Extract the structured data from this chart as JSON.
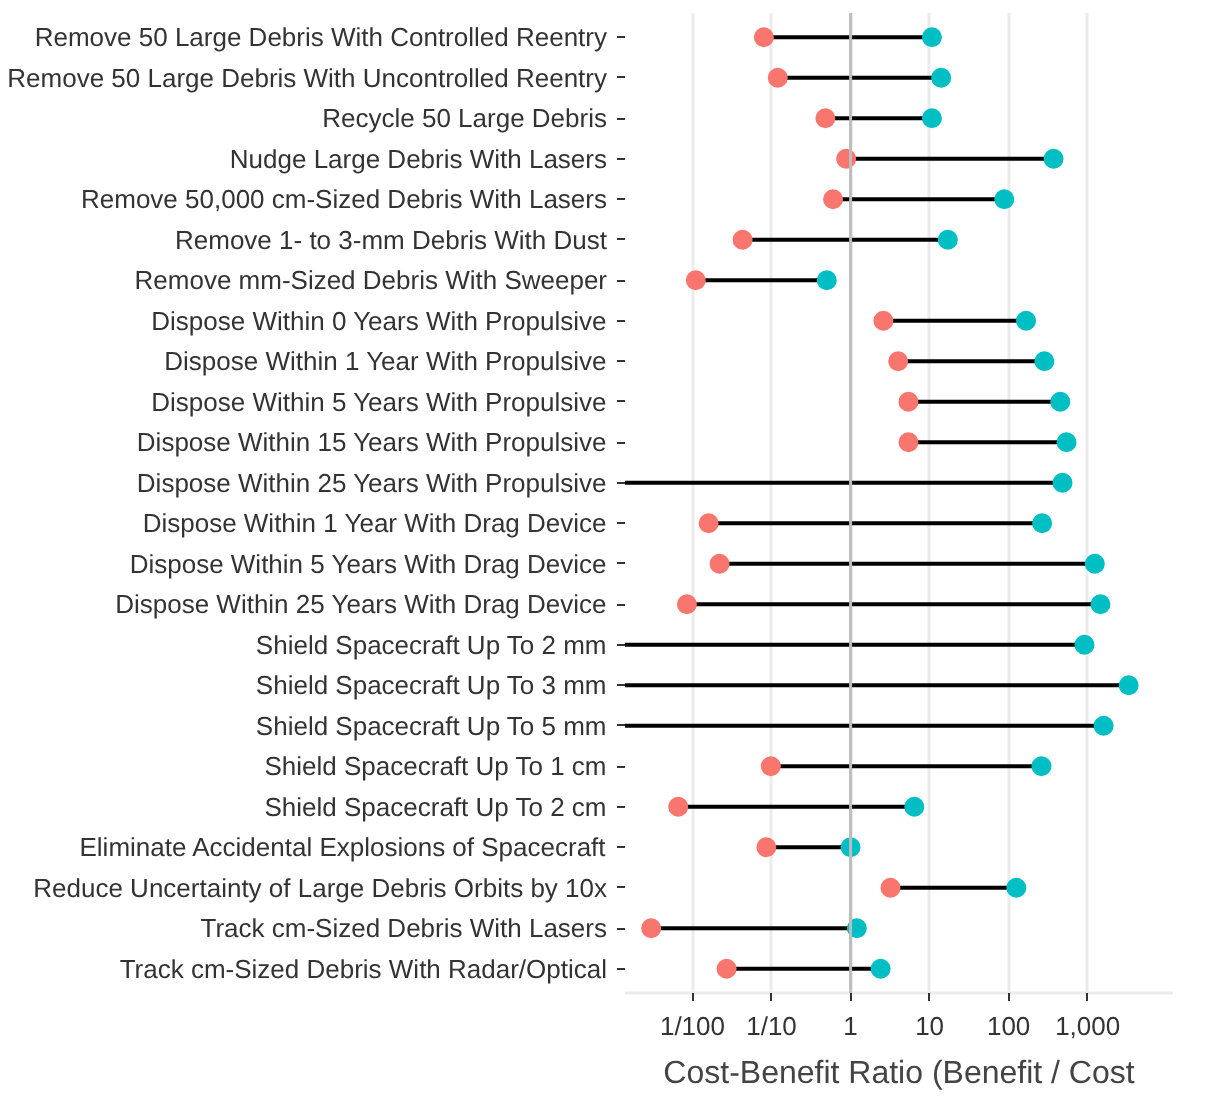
{
  "chart_data": {
    "type": "scatter",
    "orientation": "horizontal",
    "log": "x",
    "xlabel": "Cost-Benefit Ratio (Benefit / Cost",
    "categories": [
      "Remove 50 Large Debris With Controlled Reentry",
      "Remove 50 Large Debris With Uncontrolled Reentry",
      "Recycle 50 Large Debris",
      "Nudge Large Debris With Lasers",
      "Remove 50,000 cm-Sized Debris With Lasers",
      "Remove 1- to 3-mm Debris With Dust",
      "Remove mm-Sized Debris With Sweeper",
      "Dispose Within 0 Years With Propulsive",
      "Dispose Within 1 Year With Propulsive",
      "Dispose Within 5 Years With Propulsive",
      "Dispose Within 15 Years With Propulsive",
      "Dispose Within 25 Years With Propulsive",
      "Dispose Within 1 Year With Drag Device",
      "Dispose Within 5 Years With Drag Device",
      "Dispose Within 25 Years With Drag Device",
      "Shield Spacecraft Up To 2 mm",
      "Shield Spacecraft Up To 3 mm",
      "Shield Spacecraft Up To 5 mm",
      "Shield Spacecraft Up To 1 cm",
      "Shield Spacecraft Up To 2 cm",
      "Eliminate Accidental Explosions of Spacecraft",
      "Reduce Uncertainty of Large Debris Orbits by 10x",
      "Track cm-Sized Debris With Lasers",
      "Track cm-Sized Debris With Radar/Optical"
    ],
    "series": [
      {
        "color": "#f8766d",
        "values": [
          0.08,
          0.12,
          0.48,
          0.88,
          0.6,
          0.043,
          0.011,
          2.6,
          4.0,
          5.4,
          5.4,
          null,
          0.016,
          0.022,
          0.0085,
          null,
          null,
          null,
          0.098,
          0.0066,
          0.086,
          3.2,
          0.003,
          0.027
        ]
      },
      {
        "color": "#00bfc4",
        "values": [
          10.7,
          14,
          10.7,
          370,
          88,
          17,
          0.5,
          166,
          283,
          450,
          540,
          480,
          265,
          1230,
          1450,
          910,
          3300,
          1590,
          260,
          6.4,
          1.0,
          125,
          1.2,
          2.4
        ]
      }
    ],
    "xlim": [
      0.0014,
      12000
    ],
    "xticks": [
      {
        "value": 0.01,
        "label": "1/100"
      },
      {
        "value": 0.1,
        "label": "1/10"
      },
      1,
      10,
      100,
      {
        "value": 1000,
        "label": "1,000"
      }
    ],
    "grid": "x",
    "marker": "circle",
    "ref_lines": [
      {
        "axis": "x",
        "value": 1,
        "color": "#bdbdbd"
      }
    ]
  }
}
